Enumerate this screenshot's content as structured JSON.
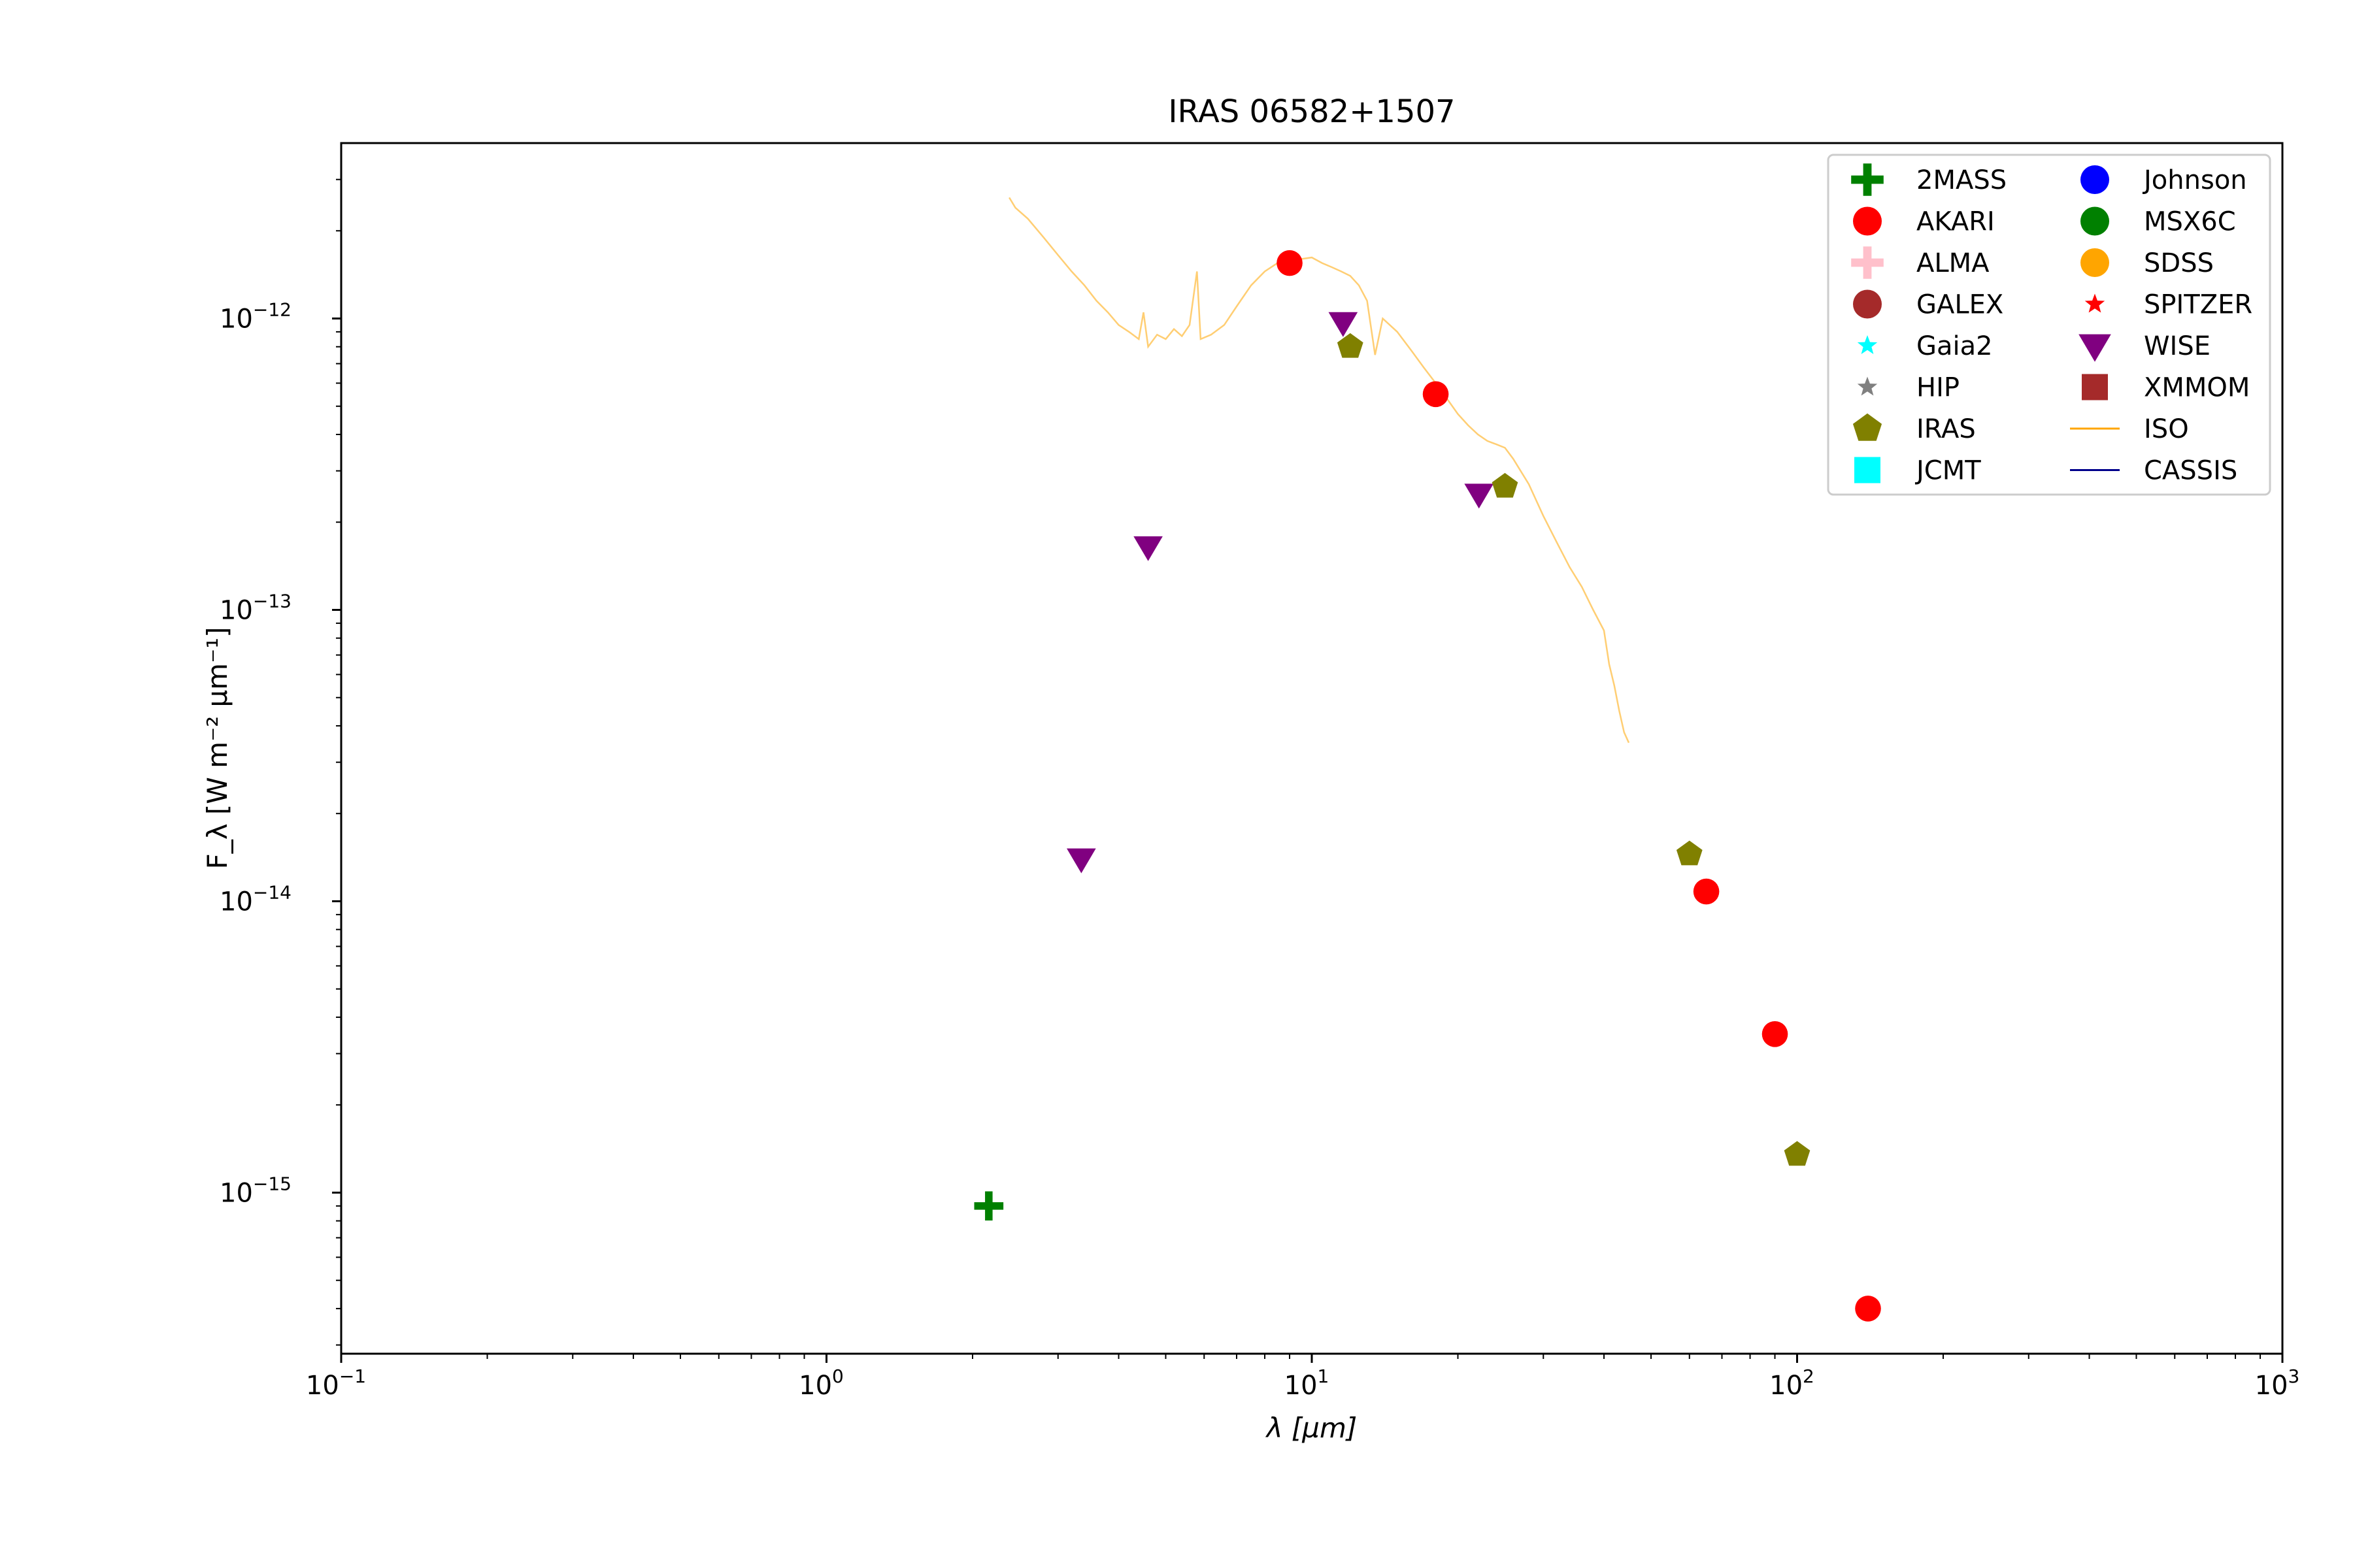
{
  "chart_data": {
    "type": "scatter",
    "title": "IRAS 06582+1507",
    "xlabel": "λ [μm]",
    "ylabel": "F_λ [W m⁻² μm⁻¹]",
    "x_scale": "log",
    "y_scale": "log",
    "xlim": [
      0.1,
      1000
    ],
    "ylim": [
      2.8e-16,
      4e-12
    ],
    "x_ticks": [
      {
        "value": 0.1,
        "base": "10",
        "exp": "−1"
      },
      {
        "value": 1,
        "base": "10",
        "exp": "0"
      },
      {
        "value": 10,
        "base": "10",
        "exp": "1"
      },
      {
        "value": 100,
        "base": "10",
        "exp": "2"
      },
      {
        "value": 1000,
        "base": "10",
        "exp": "3"
      }
    ],
    "y_ticks": [
      {
        "value": 1e-15,
        "base": "10",
        "exp": "−15"
      },
      {
        "value": 1e-14,
        "base": "10",
        "exp": "−14"
      },
      {
        "value": 1e-13,
        "base": "10",
        "exp": "−13"
      },
      {
        "value": 1e-12,
        "base": "10",
        "exp": "−12"
      }
    ],
    "grid": false,
    "legend_position": "top-right",
    "legend": [
      {
        "name": "2MASS",
        "marker": "plus",
        "color": "#008000"
      },
      {
        "name": "AKARI",
        "marker": "circle",
        "color": "#ff0000"
      },
      {
        "name": "ALMA",
        "marker": "plus",
        "color": "#ffc0cb"
      },
      {
        "name": "GALEX",
        "marker": "circle",
        "color": "#a52a2a"
      },
      {
        "name": "Gaia2",
        "marker": "star",
        "color": "#00ffff"
      },
      {
        "name": "HIP",
        "marker": "star",
        "color": "#808080"
      },
      {
        "name": "IRAS",
        "marker": "pentagon",
        "color": "#808000"
      },
      {
        "name": "JCMT",
        "marker": "square",
        "color": "#00ffff"
      },
      {
        "name": "Johnson",
        "marker": "circle",
        "color": "#0000ff"
      },
      {
        "name": "MSX6C",
        "marker": "circle",
        "color": "#008000"
      },
      {
        "name": "SDSS",
        "marker": "circle",
        "color": "#ffa500"
      },
      {
        "name": "SPITZER",
        "marker": "star",
        "color": "#ff0000"
      },
      {
        "name": "WISE",
        "marker": "triangle-down",
        "color": "#800080"
      },
      {
        "name": "XMMOM",
        "marker": "square",
        "color": "#a52a2a"
      },
      {
        "name": "ISO",
        "marker": "line",
        "color": "#ffa500"
      },
      {
        "name": "CASSIS",
        "marker": "line",
        "color": "#00008b"
      }
    ],
    "series": [
      {
        "name": "2MASS",
        "marker": "plus",
        "color": "#008000",
        "points": [
          [
            2.16,
            9e-16
          ]
        ]
      },
      {
        "name": "AKARI",
        "marker": "circle",
        "color": "#ff0000",
        "points": [
          [
            9.0,
            1.55e-12
          ],
          [
            18.0,
            5.5e-13
          ],
          [
            65.0,
            1.08e-14
          ],
          [
            90.0,
            3.5e-15
          ],
          [
            140.0,
            4e-16
          ]
        ]
      },
      {
        "name": "WISE",
        "marker": "triangle-down",
        "color": "#800080",
        "points": [
          [
            3.35,
            1.4e-14
          ],
          [
            4.6,
            1.65e-13
          ],
          [
            11.6,
            9.7e-13
          ],
          [
            22.1,
            2.5e-13
          ]
        ]
      },
      {
        "name": "IRAS",
        "marker": "pentagon",
        "color": "#808000",
        "points": [
          [
            12.0,
            8e-13
          ],
          [
            25.0,
            2.65e-13
          ],
          [
            60.0,
            1.45e-14
          ],
          [
            100.0,
            1.35e-15
          ]
        ]
      },
      {
        "name": "ISO",
        "marker": "line",
        "color": "#ffa500",
        "points": [
          [
            2.38,
            2.6e-12
          ],
          [
            2.45,
            2.4e-12
          ],
          [
            2.6,
            2.2e-12
          ],
          [
            2.8,
            1.9e-12
          ],
          [
            3.0,
            1.65e-12
          ],
          [
            3.2,
            1.45e-12
          ],
          [
            3.4,
            1.3e-12
          ],
          [
            3.6,
            1.15e-12
          ],
          [
            3.8,
            1.05e-12
          ],
          [
            4.0,
            9.5e-13
          ],
          [
            4.2,
            9e-13
          ],
          [
            4.4,
            8.5e-13
          ],
          [
            4.5,
            1.05e-12
          ],
          [
            4.6,
            8e-13
          ],
          [
            4.8,
            8.8e-13
          ],
          [
            5.0,
            8.5e-13
          ],
          [
            5.2,
            9.2e-13
          ],
          [
            5.4,
            8.7e-13
          ],
          [
            5.6,
            9.5e-13
          ],
          [
            5.8,
            1.45e-12
          ],
          [
            5.9,
            8.5e-13
          ],
          [
            6.2,
            8.8e-13
          ],
          [
            6.6,
            9.5e-13
          ],
          [
            7.0,
            1.1e-12
          ],
          [
            7.5,
            1.3e-12
          ],
          [
            8.0,
            1.45e-12
          ],
          [
            8.5,
            1.55e-12
          ],
          [
            9.0,
            1.58e-12
          ],
          [
            9.5,
            1.6e-12
          ],
          [
            10.0,
            1.62e-12
          ],
          [
            10.5,
            1.55e-12
          ],
          [
            11.0,
            1.5e-12
          ],
          [
            11.5,
            1.45e-12
          ],
          [
            12.0,
            1.4e-12
          ],
          [
            12.5,
            1.3e-12
          ],
          [
            13.0,
            1.15e-12
          ],
          [
            13.5,
            7.5e-13
          ],
          [
            14.0,
            1e-12
          ],
          [
            15.0,
            9e-13
          ],
          [
            16.0,
            7.8e-13
          ],
          [
            17.0,
            6.8e-13
          ],
          [
            18.0,
            6e-13
          ],
          [
            19.0,
            5.3e-13
          ],
          [
            20.0,
            4.7e-13
          ],
          [
            21.0,
            4.3e-13
          ],
          [
            22.0,
            4e-13
          ],
          [
            23.0,
            3.8e-13
          ],
          [
            24.0,
            3.7e-13
          ],
          [
            25.0,
            3.6e-13
          ],
          [
            26.0,
            3.3e-13
          ],
          [
            28.0,
            2.7e-13
          ],
          [
            30.0,
            2.1e-13
          ],
          [
            32.0,
            1.7e-13
          ],
          [
            34.0,
            1.4e-13
          ],
          [
            36.0,
            1.2e-13
          ],
          [
            38.0,
            1e-13
          ],
          [
            40.0,
            8.5e-14
          ],
          [
            41.0,
            6.5e-14
          ],
          [
            42.0,
            5.5e-14
          ],
          [
            43.0,
            4.5e-14
          ],
          [
            44.0,
            3.8e-14
          ],
          [
            45.0,
            3.5e-14
          ]
        ]
      }
    ]
  }
}
